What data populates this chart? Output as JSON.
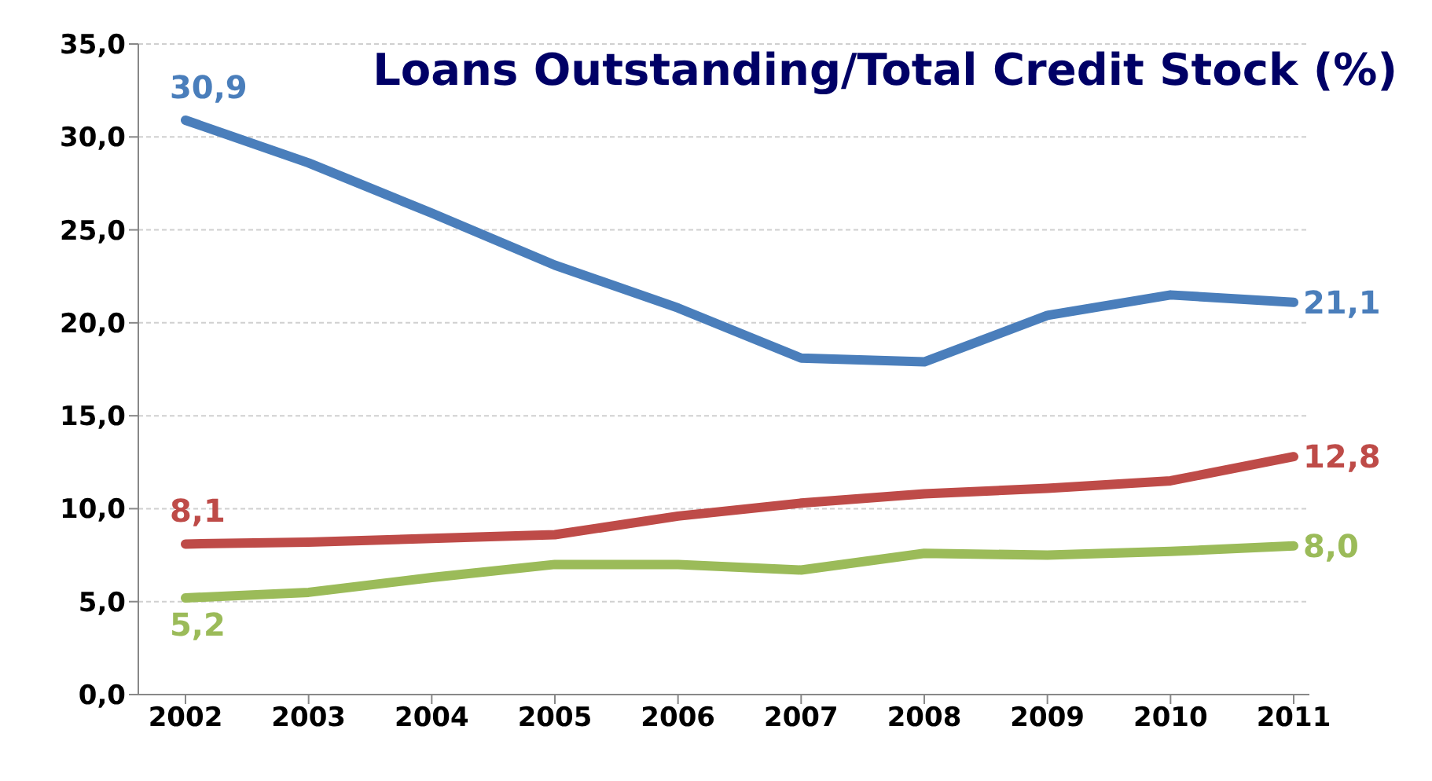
{
  "chart_data": {
    "type": "line",
    "title": "Loans Outstanding/Total Credit Stock (%)",
    "categories": [
      "2002",
      "2003",
      "2004",
      "2005",
      "2006",
      "2007",
      "2008",
      "2009",
      "2010",
      "2011"
    ],
    "series": [
      {
        "color": "#4a7ebb",
        "values": [
          30.9,
          28.6,
          25.9,
          23.1,
          20.8,
          18.1,
          17.9,
          20.4,
          21.5,
          21.1
        ],
        "value_labels": [
          "30,9",
          null,
          null,
          null,
          null,
          null,
          null,
          null,
          null,
          "21,1"
        ]
      },
      {
        "color": "#be4b48",
        "values": [
          8.1,
          8.2,
          8.4,
          8.6,
          9.6,
          10.3,
          10.8,
          11.1,
          11.5,
          12.8
        ],
        "value_labels": [
          "8,1",
          null,
          null,
          null,
          null,
          null,
          null,
          null,
          null,
          "12,8"
        ]
      },
      {
        "color": "#9bbb59",
        "values": [
          5.2,
          5.5,
          6.3,
          7.0,
          7.0,
          6.7,
          7.6,
          7.5,
          7.7,
          8.0
        ],
        "value_labels": [
          "5,2",
          null,
          null,
          null,
          null,
          null,
          null,
          null,
          null,
          "8,0"
        ]
      }
    ],
    "ylim": [
      0,
      35
    ],
    "yticks": [
      {
        "value": 0,
        "label": "0,0"
      },
      {
        "value": 5,
        "label": "5,0"
      },
      {
        "value": 10,
        "label": "10,0"
      },
      {
        "value": 15,
        "label": "15,0"
      },
      {
        "value": 20,
        "label": "20,0"
      },
      {
        "value": 25,
        "label": "25,0"
      },
      {
        "value": 30,
        "label": "30,0"
      },
      {
        "value": 35,
        "label": "35,0"
      }
    ],
    "grid": "y",
    "legend": false,
    "marker": "none",
    "line_style": "solid"
  }
}
